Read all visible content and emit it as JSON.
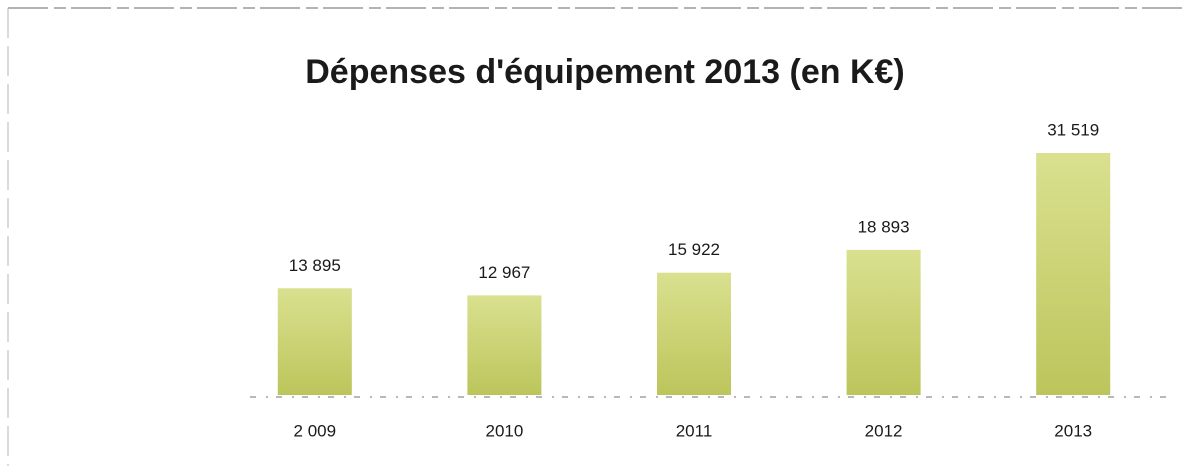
{
  "chart_data": {
    "type": "bar",
    "title": "Dépenses d'équipement 2013 (en K€)",
    "categories": [
      "2 009",
      "2010",
      "2011",
      "2012",
      "2013"
    ],
    "values": [
      13895,
      12967,
      15922,
      18893,
      31519
    ],
    "value_labels": [
      "13 895",
      "12 967",
      "15 922",
      "18 893",
      "31 519"
    ],
    "color": "#cdd66a"
  }
}
